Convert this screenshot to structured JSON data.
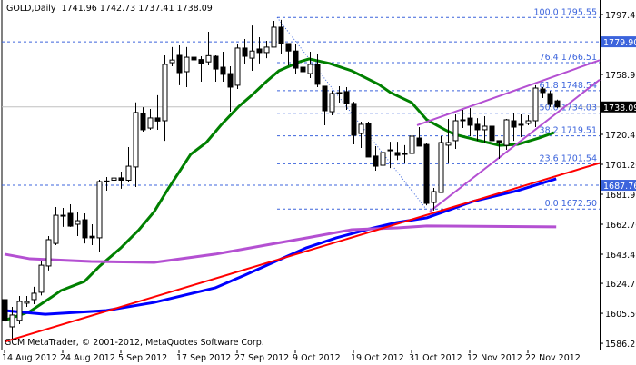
{
  "header": {
    "symbol_timeframe": "GOLD,Daily",
    "open": "1741.96",
    "high": "1742.73",
    "low": "1737.41",
    "close": "1738.09"
  },
  "footer": {
    "copyright": "GCM MetaTrader, © 2001-2012, MetaQuotes Software Corp."
  },
  "chart_data": {
    "type": "candlestick",
    "title": "GOLD,Daily",
    "ylim": [
      1586.25,
      1797.45
    ],
    "y_ticks": [
      "1797.45",
      "1758.95",
      "1720.45",
      "1701.20",
      "1681.95",
      "1662.70",
      "1643.45",
      "1624.75",
      "1605.50",
      "1586.25"
    ],
    "x_ticks": [
      {
        "i": 0,
        "label": "14 Aug 2012"
      },
      {
        "i": 8,
        "label": "24 Aug 2012"
      },
      {
        "i": 16,
        "label": "5 Sep 2012"
      },
      {
        "i": 24,
        "label": "17 Sep 2012"
      },
      {
        "i": 32,
        "label": "27 Sep 2012"
      },
      {
        "i": 40,
        "label": "9 Oct 2012"
      },
      {
        "i": 48,
        "label": "19 Oct 2012"
      },
      {
        "i": 56,
        "label": "31 Oct 2012"
      },
      {
        "i": 64,
        "label": "12 Nov 2012"
      },
      {
        "i": 72,
        "label": "22 Nov 2012"
      }
    ],
    "ohlc": [
      [
        1614.3,
        1617,
        1598,
        1601.0
      ],
      [
        1596.8,
        1609.6,
        1589.2,
        1604.4
      ],
      [
        1601,
        1616.6,
        1598.5,
        1613.1
      ],
      [
        1612,
        1616.6,
        1609.6,
        1613
      ],
      [
        1614.3,
        1622.5,
        1611.4,
        1618.4
      ],
      [
        1619,
        1638.8,
        1617,
        1636.4
      ],
      [
        1635.9,
        1655.1,
        1633,
        1652.8
      ],
      [
        1650.4,
        1673.8,
        1649.3,
        1668.5
      ],
      [
        1668.5,
        1673.2,
        1661,
        1668.2
      ],
      [
        1669.7,
        1675.5,
        1661,
        1661.5
      ],
      [
        1662.7,
        1670.8,
        1655.1,
        1665
      ],
      [
        1665.6,
        1669.7,
        1650.4,
        1654
      ],
      [
        1655,
        1662.7,
        1649.3,
        1654
      ],
      [
        1654,
        1691.3,
        1644.6,
        1690.1
      ],
      [
        1690,
        1693,
        1684.3,
        1690.5
      ],
      [
        1691,
        1697.7,
        1688.4,
        1692.4
      ],
      [
        1692.5,
        1696.5,
        1685.5,
        1691
      ],
      [
        1691,
        1712.3,
        1689.5,
        1700
      ],
      [
        1699.5,
        1741,
        1686.6,
        1734.5
      ],
      [
        1733.9,
        1737.9,
        1722.2,
        1723.4
      ],
      [
        1724.5,
        1736.8,
        1723.4,
        1731
      ],
      [
        1731,
        1745.6,
        1723.4,
        1729
      ],
      [
        1729.2,
        1771.2,
        1716.3,
        1765.4
      ],
      [
        1766.5,
        1776.5,
        1764.2,
        1768.2
      ],
      [
        1771.2,
        1777.6,
        1752,
        1760.1
      ],
      [
        1760.7,
        1776.5,
        1750.8,
        1770
      ],
      [
        1770,
        1778.2,
        1760.1,
        1768.3
      ],
      [
        1768.5,
        1770.6,
        1754.3,
        1765.9
      ],
      [
        1767,
        1786.4,
        1764.8,
        1771
      ],
      [
        1770.6,
        1771.2,
        1754.3,
        1762.4
      ],
      [
        1763.6,
        1773.5,
        1754.3,
        1759
      ],
      [
        1759.5,
        1764.2,
        1735,
        1750.8
      ],
      [
        1752,
        1778.8,
        1749.6,
        1775.9
      ],
      [
        1775.9,
        1781.7,
        1765.4,
        1770.6
      ],
      [
        1769.4,
        1790.4,
        1761.3,
        1774
      ],
      [
        1775.3,
        1782.9,
        1766,
        1773
      ],
      [
        1773,
        1780.5,
        1769.4,
        1776.5
      ],
      [
        1776.5,
        1793.4,
        1776.5,
        1789.3
      ],
      [
        1789.3,
        1794,
        1771.8,
        1778.8
      ],
      [
        1778.8,
        1778.8,
        1764.8,
        1774
      ],
      [
        1774,
        1778.8,
        1759,
        1763
      ],
      [
        1763.6,
        1769.4,
        1755.4,
        1760.7
      ],
      [
        1759.5,
        1773.5,
        1756.6,
        1765.4
      ],
      [
        1765.4,
        1772.4,
        1750.8,
        1752.6
      ],
      [
        1751.4,
        1751.4,
        1726.3,
        1735.6
      ],
      [
        1735,
        1748.4,
        1732.7,
        1746.7
      ],
      [
        1747,
        1751.4,
        1740.9,
        1747.3
      ],
      [
        1747.9,
        1750.8,
        1736.2,
        1740.3
      ],
      [
        1740.3,
        1741.4,
        1714,
        1719.9
      ],
      [
        1721,
        1728.6,
        1711.7,
        1726.9
      ],
      [
        1727.5,
        1728.6,
        1705.9,
        1705.9
      ],
      [
        1706.5,
        1712.9,
        1697.1,
        1700
      ],
      [
        1700.6,
        1716.3,
        1699.4,
        1708.8
      ],
      [
        1710,
        1715.7,
        1698.8,
        1710.5
      ],
      [
        1708.8,
        1715.7,
        1704,
        1707
      ],
      [
        1708.2,
        1713.5,
        1702.4,
        1707.6
      ],
      [
        1708.2,
        1725.1,
        1707,
        1719.3
      ],
      [
        1718.1,
        1725.1,
        1712.9,
        1712.9
      ],
      [
        1714,
        1714.6,
        1674.9,
        1676.1
      ],
      [
        1676.7,
        1686,
        1671.5,
        1683.7
      ],
      [
        1683.1,
        1719.3,
        1683.1,
        1715.2
      ],
      [
        1713.5,
        1730.4,
        1701.8,
        1715.2
      ],
      [
        1716.4,
        1733.3,
        1711.1,
        1729.2
      ],
      [
        1729.8,
        1736.2,
        1724.5,
        1729.8
      ],
      [
        1730.9,
        1737.3,
        1719.3,
        1726.3
      ],
      [
        1726.9,
        1730.9,
        1716.3,
        1723.4
      ],
      [
        1723.4,
        1732.1,
        1715.2,
        1725.7
      ],
      [
        1725.7,
        1728.6,
        1703,
        1716.4
      ],
      [
        1716.4,
        1716.3,
        1704.7,
        1715.5
      ],
      [
        1713.4,
        1730.4,
        1710.5,
        1729.8
      ],
      [
        1729.2,
        1733.9,
        1716.3,
        1725.1
      ],
      [
        1726.9,
        1733.3,
        1718.7,
        1726.3
      ],
      [
        1727.5,
        1732.7,
        1726.3,
        1729.2
      ],
      [
        1729.2,
        1752,
        1725.1,
        1750.2
      ],
      [
        1749.6,
        1750.8,
        1743.8,
        1747.3
      ],
      [
        1746.7,
        1748.4,
        1738,
        1739.7
      ],
      [
        1741.96,
        1742.73,
        1737.41,
        1738.09
      ]
    ],
    "moving_averages": [
      {
        "color": "#008000",
        "points": [
          [
            0,
            1600.9
          ],
          [
            3.5,
            1606.7
          ],
          [
            6.5,
            1616.0
          ],
          [
            7.75,
            1620.1
          ],
          [
            11,
            1626.0
          ],
          [
            13.1,
            1635.9
          ],
          [
            16,
            1647.5
          ],
          [
            18.5,
            1659.2
          ],
          [
            20.6,
            1670.9
          ],
          [
            22.5,
            1685.4
          ],
          [
            25.6,
            1707.6
          ],
          [
            27.75,
            1715.2
          ],
          [
            29.75,
            1726.3
          ],
          [
            32.25,
            1738.5
          ],
          [
            34,
            1745.5
          ],
          [
            36,
            1754.3
          ],
          [
            37.75,
            1761.3
          ],
          [
            40.6,
            1767.1
          ],
          [
            41.9,
            1768.9
          ],
          [
            44.75,
            1766.0
          ],
          [
            47.75,
            1761.3
          ],
          [
            51.5,
            1752.5
          ],
          [
            53.1,
            1747.3
          ],
          [
            56,
            1740.9
          ],
          [
            58.1,
            1729.8
          ],
          [
            60.6,
            1723.4
          ],
          [
            61.9,
            1720.5
          ],
          [
            64.4,
            1717.5
          ],
          [
            68.1,
            1713.4
          ],
          [
            70.6,
            1714.0
          ],
          [
            73.5,
            1718.1
          ],
          [
            75.6,
            1721.6
          ]
        ]
      },
      {
        "color": "#0000ff",
        "points": [
          [
            0,
            1607.3
          ],
          [
            5.6,
            1604.9
          ],
          [
            14,
            1607.3
          ],
          [
            20.6,
            1612.5
          ],
          [
            29,
            1621.9
          ],
          [
            33.1,
            1630.1
          ],
          [
            37.25,
            1638.8
          ],
          [
            41.5,
            1647.5
          ],
          [
            45.6,
            1653.9
          ],
          [
            49.75,
            1659.2
          ],
          [
            54,
            1663.9
          ],
          [
            58.1,
            1666.8
          ],
          [
            64.4,
            1677.3
          ],
          [
            70.6,
            1684.3
          ],
          [
            75.9,
            1691.9
          ]
        ]
      },
      {
        "color": "#b450d2",
        "points": [
          [
            0,
            1643.5
          ],
          [
            3.5,
            1640.5
          ],
          [
            11.9,
            1638.8
          ],
          [
            20.6,
            1638.2
          ],
          [
            29,
            1643.5
          ],
          [
            37.25,
            1650.4
          ],
          [
            41.5,
            1653.9
          ],
          [
            47.75,
            1659.2
          ],
          [
            54,
            1660.4
          ],
          [
            58.1,
            1661.6
          ],
          [
            75.9,
            1661.0
          ]
        ]
      }
    ],
    "trendlines": [
      {
        "color": "#ff0000",
        "from": [
          0,
          1587.2
        ],
        "to": [
          82,
          1702.2
        ]
      },
      {
        "color": "#b450d2",
        "from": [
          56.75,
          1726.3
        ],
        "to": [
          82,
          1768.3
        ]
      },
      {
        "color": "#b450d2",
        "from": [
          58.5,
          1670.9
        ],
        "to": [
          82,
          1756.0
        ]
      }
    ],
    "fibonacci": {
      "color": "#3c64dc",
      "from": [
        37.5,
        1795.55
      ],
      "to": [
        58,
        1672.5
      ],
      "levels": [
        {
          "label": "100.0 1795.55",
          "price": 1795.55
        },
        {
          "label": "76.4 1766.51",
          "price": 1766.51
        },
        {
          "label": "61.8 1748.54",
          "price": 1748.54
        },
        {
          "label": "50.0 1734.03",
          "price": 1734.03
        },
        {
          "label": "38.2 1719.51",
          "price": 1719.51
        },
        {
          "label": "23.6 1701.54",
          "price": 1701.54
        },
        {
          "label": "0.0 1672.50",
          "price": 1672.5
        }
      ]
    },
    "horizontal_lines": [
      {
        "label": "1779.90",
        "price": 1779.9,
        "color": "#3c64dc"
      },
      {
        "label": "1687.76",
        "price": 1687.76,
        "color": "#3c64dc"
      }
    ],
    "bid_line": {
      "label": "1738.09",
      "price": 1738.09,
      "color": "#c0c0c0"
    }
  }
}
